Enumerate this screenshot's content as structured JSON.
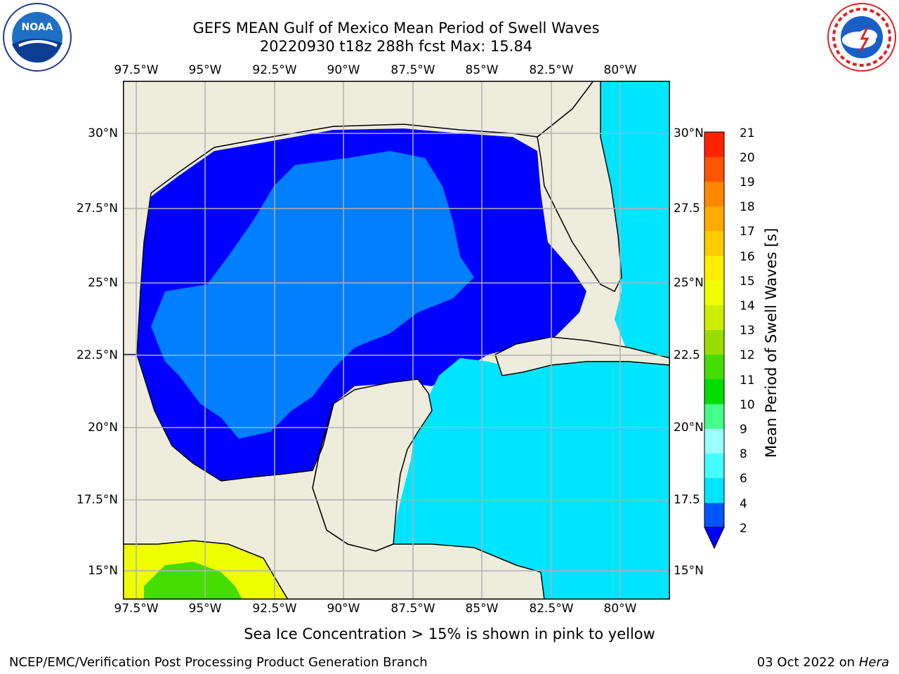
{
  "header": {
    "title_line1": "GEFS MEAN Gulf of Mexico Mean Period of Swell Waves",
    "title_line2": "20220930 t18z 288h fcst   Max: 15.84"
  },
  "logos": {
    "noaa_text": "NOAA",
    "noaa_ring": "NATIONAL OCEANIC AND ATMOSPHERIC ADMINISTRATION · U.S. DEPARTMENT OF COMMERCE",
    "nws_ring": "NATIONAL WEATHER SERVICE"
  },
  "map": {
    "lon_ticks": [
      "97.5°W",
      "95°W",
      "92.5°W",
      "90°W",
      "87.5°W",
      "85°W",
      "82.5°W",
      "80°W"
    ],
    "lat_ticks": [
      "30°N",
      "27.5°N",
      "25°N",
      "22.5°N",
      "20°N",
      "17.5°N",
      "15°N"
    ],
    "lat_ticks_right": [
      "30°N",
      "27.5",
      "25°N",
      "22.5",
      "20°N",
      "17.5",
      "15°N"
    ],
    "lon_range": [
      -98,
      -79
    ],
    "lat_range": [
      14,
      31.8
    ],
    "land_color": "#eeecdc",
    "grid_color": "#b0b0b0"
  },
  "colorbar": {
    "label": "Mean Period of Swell Waves [s]",
    "ticks": [
      "2",
      "4",
      "6",
      "8",
      "9",
      "10",
      "11",
      "12",
      "13",
      "14",
      "15",
      "16",
      "17",
      "18",
      "19",
      "20",
      "21"
    ],
    "colors": [
      "#0055ff",
      "#00e5ff",
      "#44ffff",
      "#99ffff",
      "#44ff88",
      "#00dd00",
      "#44dd00",
      "#99dd00",
      "#ccee00",
      "#eeff00",
      "#ffee00",
      "#ffcc00",
      "#ffaa00",
      "#ff8800",
      "#ff5500",
      "#ff2200"
    ],
    "under_color": "#0000ff"
  },
  "footer": {
    "sea_ice_note": "Sea Ice Concentration > 15% is shown in pink to yellow",
    "branch": "NCEP/EMC/Verification Post Processing Product Generation Branch",
    "date": "03 Oct 2022 on",
    "host": "Hera"
  }
}
